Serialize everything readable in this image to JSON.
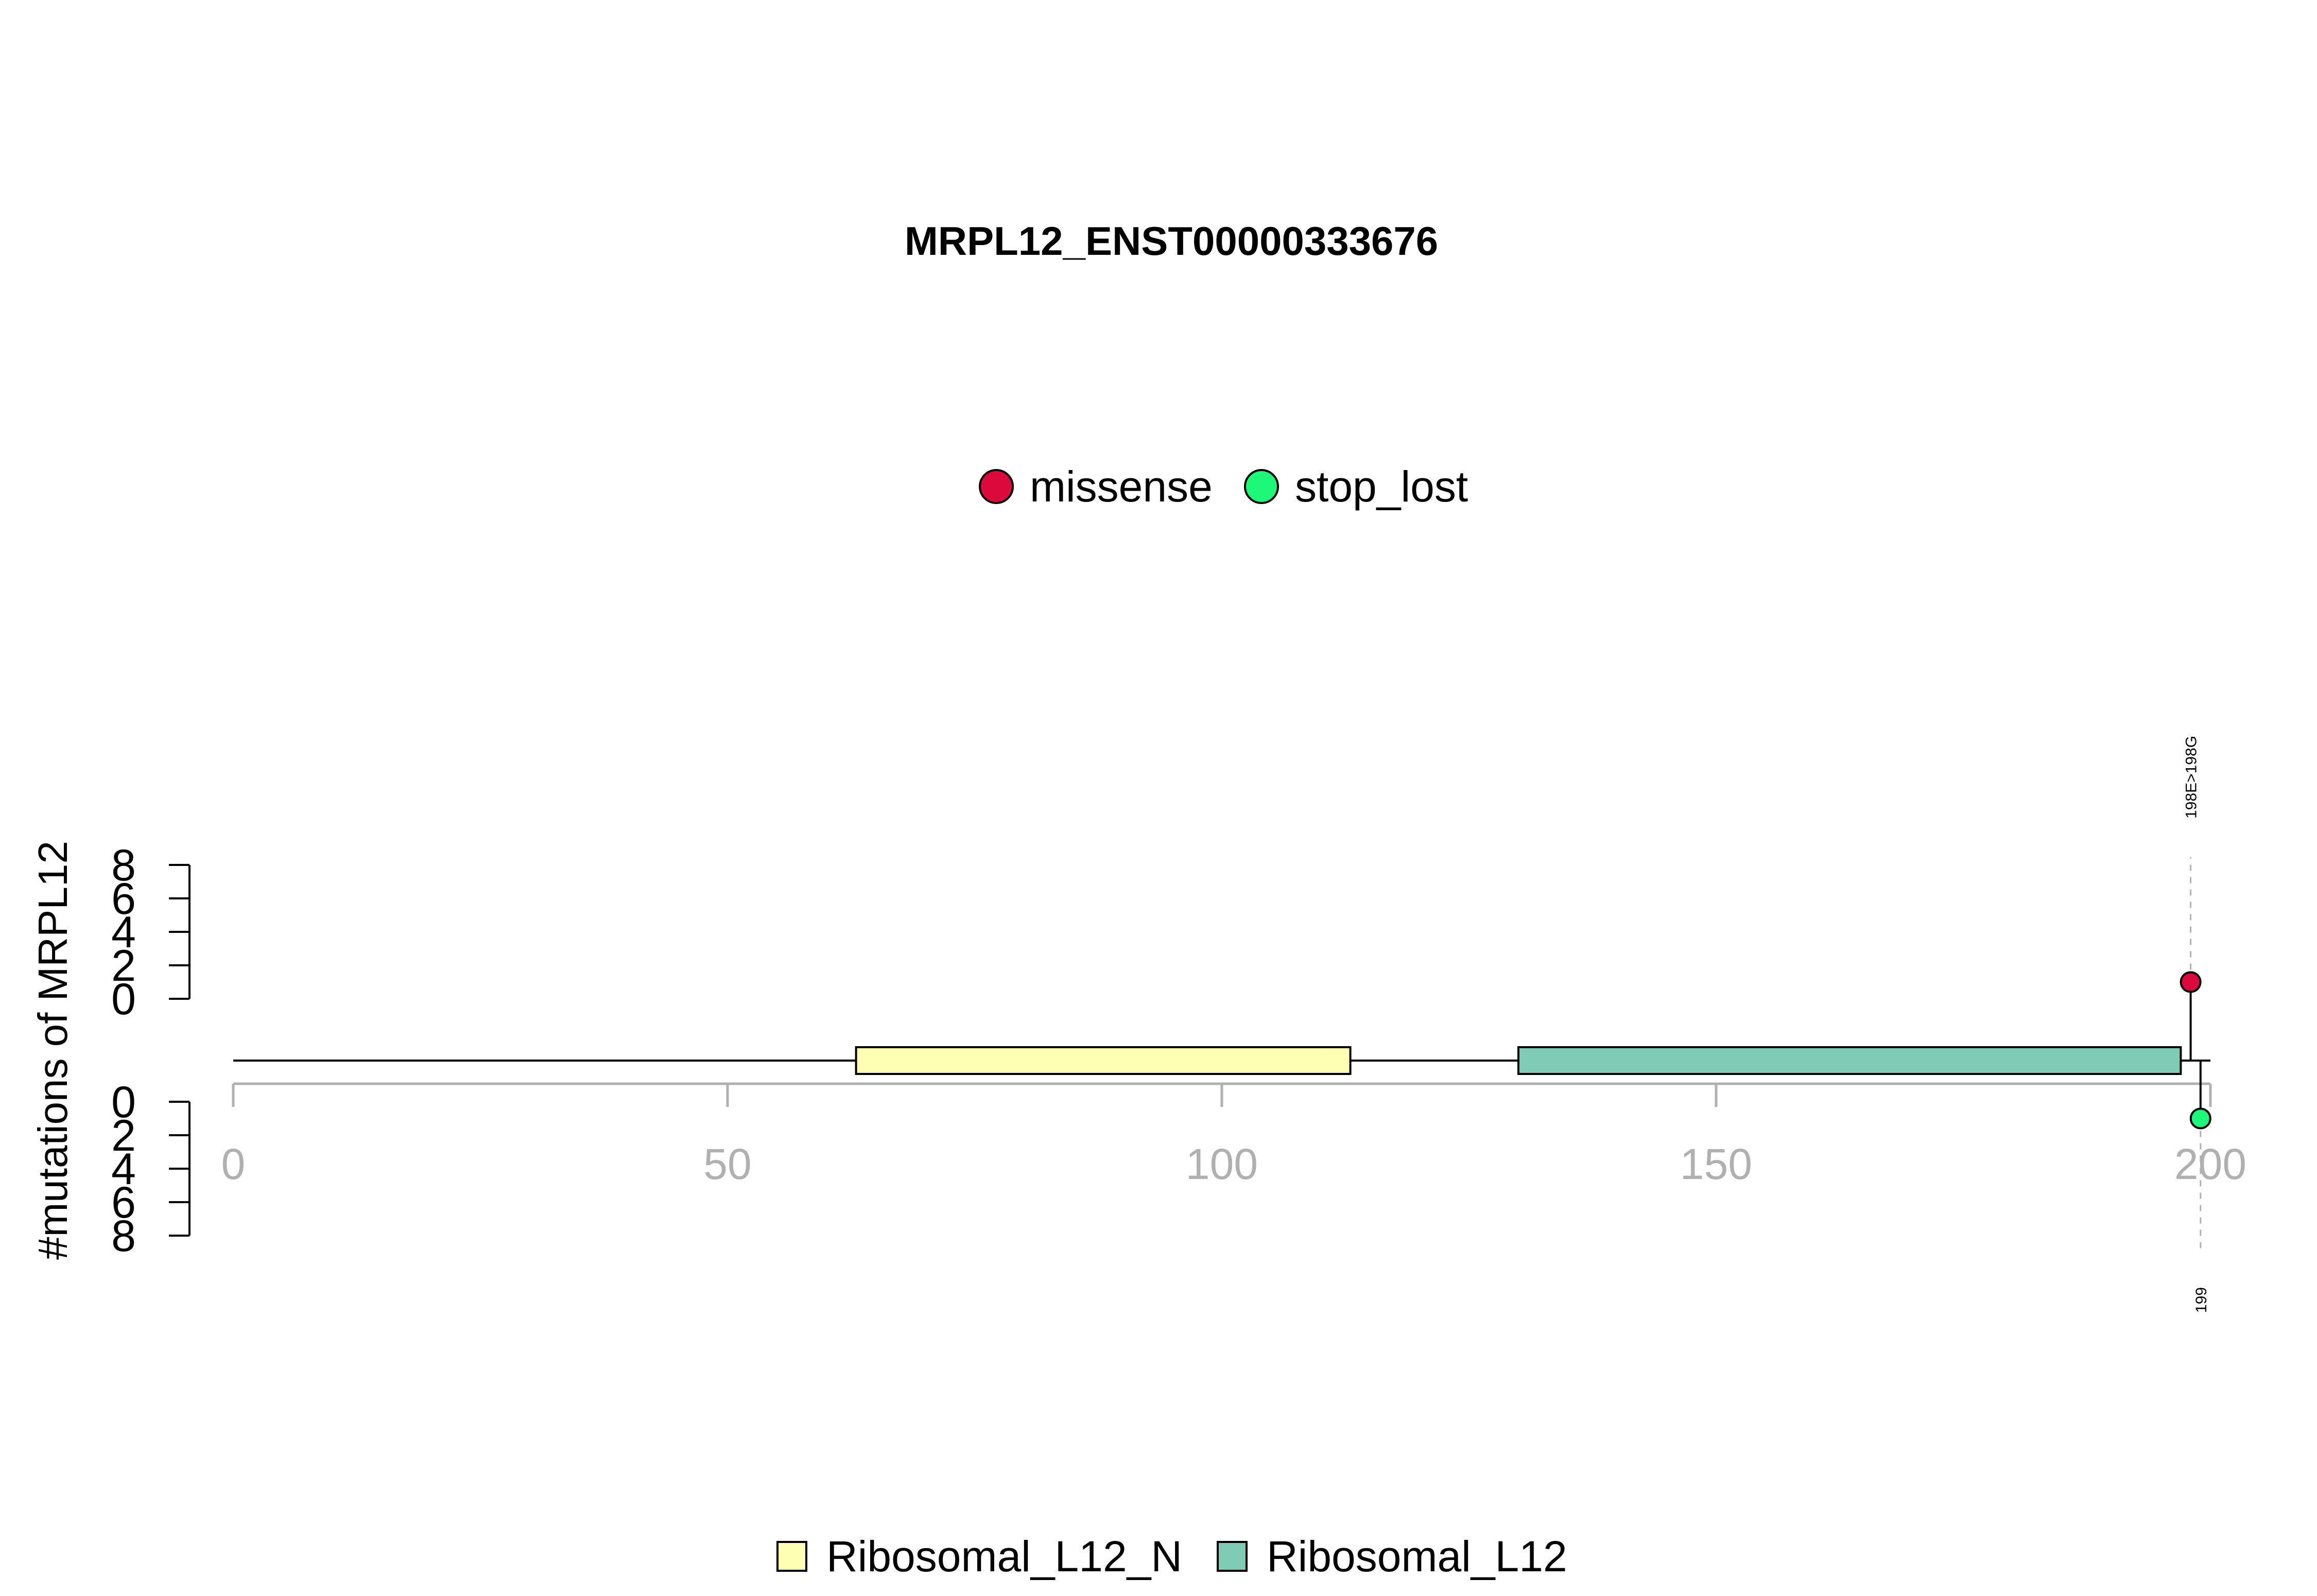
{
  "chart_data": {
    "type": "lollipop",
    "title": "MRPL12_ENST00000333676",
    "ylabel": "#mutations of MRPL12",
    "xlim": [
      0,
      200
    ],
    "x_ticks": [
      0,
      50,
      100,
      150,
      200
    ],
    "y_ticks": [
      0,
      2,
      4,
      6,
      8
    ],
    "ylim": [
      0,
      8
    ],
    "legend_top": [
      {
        "name": "missense",
        "color": "#DC0A3C"
      },
      {
        "name": "stop_lost",
        "color": "#1EF878"
      }
    ],
    "domains": [
      {
        "name": "Ribosomal_L12_N",
        "start": 63,
        "end": 113,
        "color": "#FFFFB3"
      },
      {
        "name": "Ribosomal_L12",
        "start": 130,
        "end": 197,
        "color": "#7FCBB6"
      }
    ],
    "mutations": [
      {
        "position": 198,
        "count": 1,
        "type": "missense",
        "label": "198E>198G",
        "strand": "top",
        "color": "#DC0A3C"
      },
      {
        "position": 199,
        "count": 1,
        "type": "stop_lost",
        "label": "199",
        "strand": "bottom",
        "color": "#1EF878"
      }
    ]
  }
}
